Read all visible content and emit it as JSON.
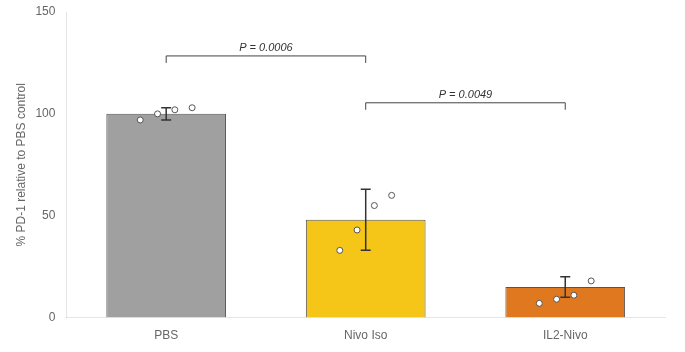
{
  "chart_data": {
    "type": "bar",
    "categories": [
      "PBS",
      "Nivo Iso",
      "IL2-Nivo"
    ],
    "values": [
      100,
      48,
      15
    ],
    "errors": [
      3,
      15,
      5
    ],
    "colors": [
      "#a0a0a0",
      "#f5c518",
      "#e07820"
    ],
    "points": [
      [
        97,
        100,
        102,
        103
      ],
      [
        33,
        43,
        55,
        60
      ],
      [
        7,
        9,
        11,
        18
      ]
    ],
    "ylabel": "% PD-1 relative to PBS control",
    "ylim": [
      0,
      150
    ],
    "yticks": [
      0,
      50,
      100,
      150
    ],
    "grid": false,
    "annotations": [
      {
        "x1": "PBS",
        "x2": "Nivo Iso",
        "y": 125,
        "text": "P = 0.0006"
      },
      {
        "x1": "Nivo Iso",
        "x2": "IL2-Nivo",
        "y": 102,
        "text": "P = 0.0049"
      }
    ]
  }
}
